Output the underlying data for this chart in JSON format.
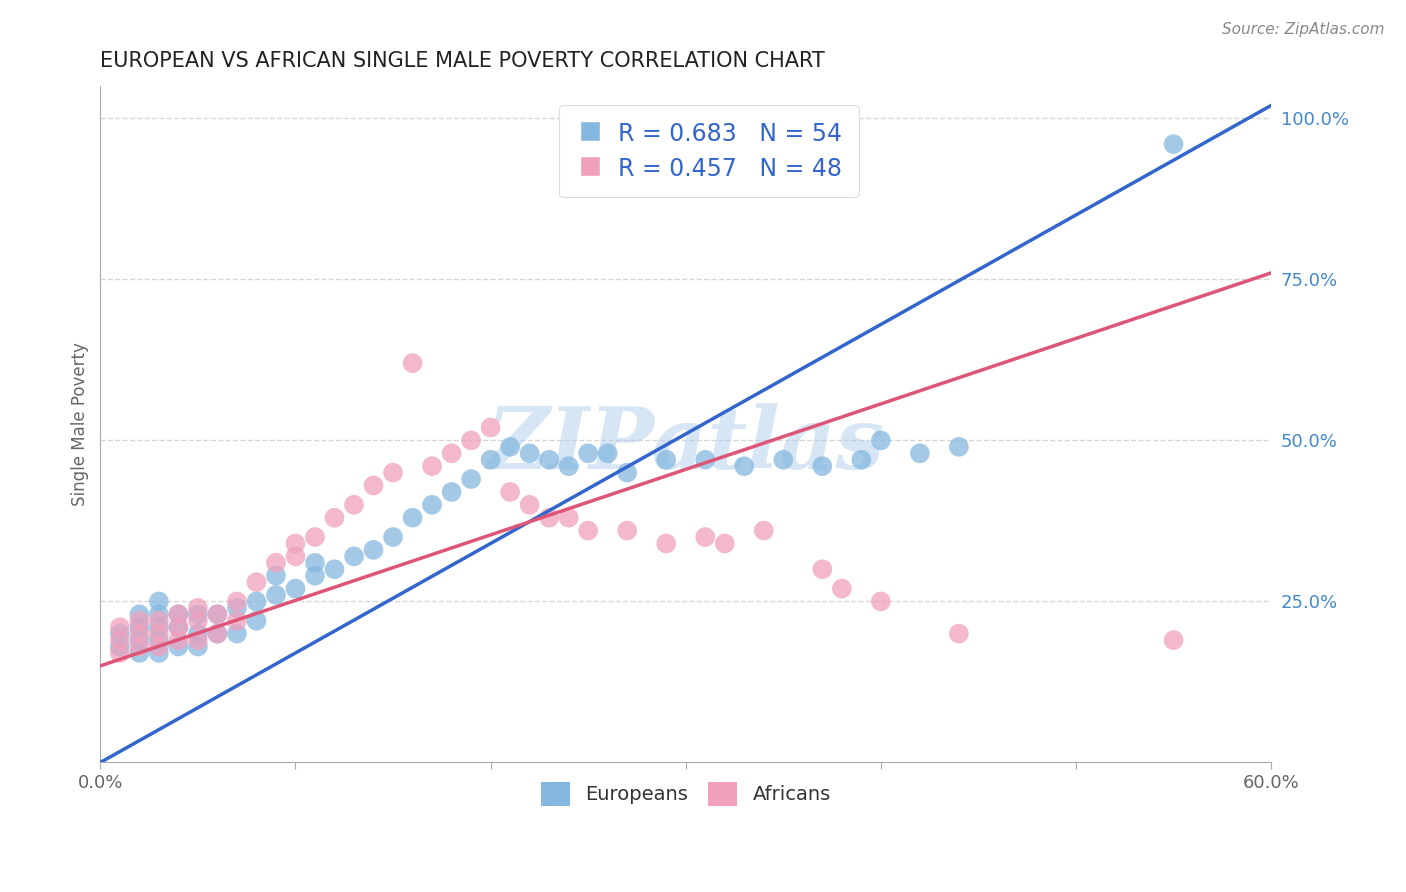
{
  "title": "EUROPEAN VS AFRICAN SINGLE MALE POVERTY CORRELATION CHART",
  "source_text": "Source: ZipAtlas.com",
  "ylabel": "Single Male Poverty",
  "watermark": "ZIPatlas",
  "xlim": [
    0.0,
    0.6
  ],
  "ylim": [
    0.0,
    1.05
  ],
  "xticklabels": [
    "0.0%",
    "",
    "",
    "",
    "",
    "",
    "60.0%"
  ],
  "ytick_vals": [
    0.0,
    0.25,
    0.5,
    0.75,
    1.0
  ],
  "yticklabels_right": [
    "",
    "25.0%",
    "50.0%",
    "75.0%",
    "100.0%"
  ],
  "blue_color": "#85b8e0",
  "pink_color": "#f0a0bc",
  "blue_line_color": "#3366cc",
  "pink_line_color": "#dd5577",
  "grid_color": "#cccccc",
  "background_color": "#ffffff",
  "legend_blue_R": "R = 0.683",
  "legend_blue_N": "N = 54",
  "legend_pink_R": "R = 0.457",
  "legend_pink_N": "N = 48",
  "legend_label_blue": "Europeans",
  "legend_label_pink": "Africans",
  "blue_line_x": [
    0.0,
    0.6
  ],
  "blue_line_y": [
    0.0,
    1.02
  ],
  "pink_line_x": [
    0.0,
    0.6
  ],
  "pink_line_y": [
    0.15,
    0.76
  ],
  "blue_x": [
    0.01,
    0.01,
    0.02,
    0.02,
    0.02,
    0.02,
    0.03,
    0.03,
    0.03,
    0.03,
    0.03,
    0.04,
    0.04,
    0.04,
    0.05,
    0.05,
    0.05,
    0.06,
    0.06,
    0.07,
    0.07,
    0.08,
    0.08,
    0.09,
    0.09,
    0.1,
    0.11,
    0.11,
    0.12,
    0.13,
    0.14,
    0.15,
    0.16,
    0.17,
    0.18,
    0.19,
    0.2,
    0.21,
    0.22,
    0.23,
    0.24,
    0.25,
    0.26,
    0.27,
    0.29,
    0.31,
    0.33,
    0.35,
    0.37,
    0.39,
    0.4,
    0.42,
    0.44,
    0.55
  ],
  "blue_y": [
    0.18,
    0.2,
    0.17,
    0.19,
    0.21,
    0.23,
    0.17,
    0.19,
    0.21,
    0.23,
    0.25,
    0.18,
    0.21,
    0.23,
    0.18,
    0.2,
    0.23,
    0.2,
    0.23,
    0.2,
    0.24,
    0.22,
    0.25,
    0.26,
    0.29,
    0.27,
    0.29,
    0.31,
    0.3,
    0.32,
    0.33,
    0.35,
    0.38,
    0.4,
    0.42,
    0.44,
    0.47,
    0.49,
    0.48,
    0.47,
    0.46,
    0.48,
    0.48,
    0.45,
    0.47,
    0.47,
    0.46,
    0.47,
    0.46,
    0.47,
    0.5,
    0.48,
    0.49,
    0.96
  ],
  "pink_x": [
    0.01,
    0.01,
    0.01,
    0.02,
    0.02,
    0.02,
    0.03,
    0.03,
    0.03,
    0.04,
    0.04,
    0.04,
    0.05,
    0.05,
    0.05,
    0.06,
    0.06,
    0.07,
    0.07,
    0.08,
    0.09,
    0.1,
    0.1,
    0.11,
    0.12,
    0.13,
    0.14,
    0.15,
    0.16,
    0.17,
    0.18,
    0.19,
    0.2,
    0.21,
    0.22,
    0.23,
    0.24,
    0.25,
    0.27,
    0.29,
    0.31,
    0.32,
    0.34,
    0.37,
    0.38,
    0.4,
    0.44,
    0.55
  ],
  "pink_y": [
    0.17,
    0.19,
    0.21,
    0.18,
    0.2,
    0.22,
    0.18,
    0.2,
    0.22,
    0.19,
    0.21,
    0.23,
    0.19,
    0.22,
    0.24,
    0.2,
    0.23,
    0.22,
    0.25,
    0.28,
    0.31,
    0.32,
    0.34,
    0.35,
    0.38,
    0.4,
    0.43,
    0.45,
    0.62,
    0.46,
    0.48,
    0.5,
    0.52,
    0.42,
    0.4,
    0.38,
    0.38,
    0.36,
    0.36,
    0.34,
    0.35,
    0.34,
    0.36,
    0.3,
    0.27,
    0.25,
    0.2,
    0.19
  ]
}
